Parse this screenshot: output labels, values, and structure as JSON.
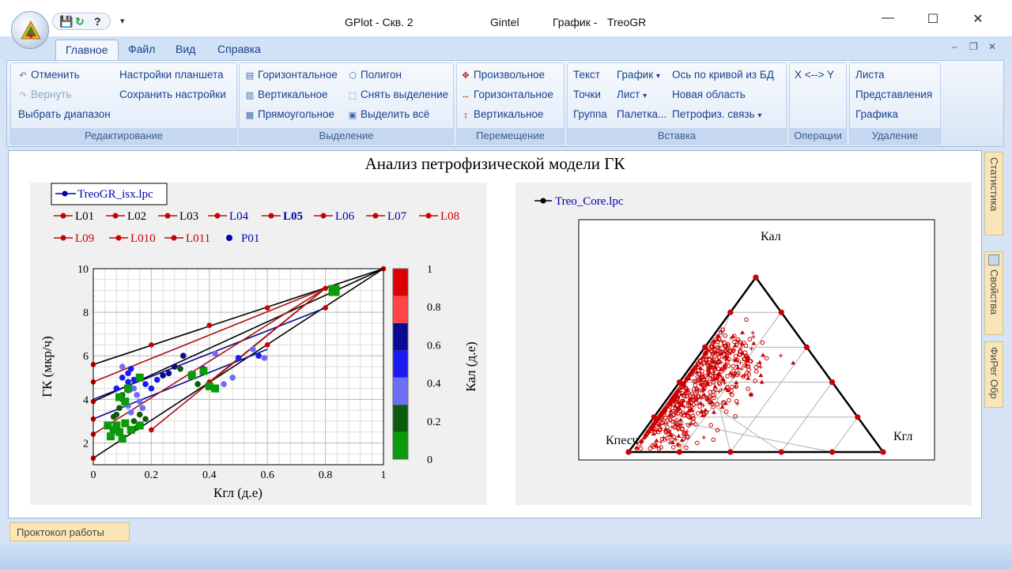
{
  "titlebar": {
    "app_title": "GPlot - Скв. 2",
    "company": "Gintel",
    "doc_label": "График -",
    "doc_name": "TreoGR",
    "minimize": "—",
    "maximize": "☐",
    "close": "✕"
  },
  "quick_access": {
    "save": "💾",
    "refresh": "↻",
    "help": "?",
    "dropdown": "▾"
  },
  "tabs": [
    {
      "label": "Главное",
      "active": true
    },
    {
      "label": "Файл"
    },
    {
      "label": "Вид"
    },
    {
      "label": "Справка"
    }
  ],
  "mdi_controls": {
    "minimize": "–",
    "restore": "❐",
    "close": "✕"
  },
  "ribbon": {
    "editing": {
      "title": "Редактирование",
      "undo": "Отменить",
      "redo": "Вернуть",
      "select_range": "Выбрать диапазон",
      "tablet_settings": "Настройки планшета",
      "save_settings": "Сохранить настройки"
    },
    "selection": {
      "title": "Выделение",
      "horizontal": "Горизонтальное",
      "vertical": "Вертикальное",
      "rectangular": "Прямоугольное",
      "polygon": "Полигон",
      "deselect": "Снять выделение",
      "select_all": "Выделить всё"
    },
    "moving": {
      "title": "Перемещение",
      "arbitrary": "Произвольное",
      "horizontal": "Горизонтальное",
      "vertical": "Вертикальное"
    },
    "insert": {
      "title": "Вставка",
      "text": "Текст",
      "points": "Точки",
      "group": "Группа",
      "chart": "График",
      "sheet": "Лист",
      "palette": "Палетка...",
      "axis_from_db": "Ось по кривой из БД",
      "new_area": "Новая область",
      "petro_link": "Петрофиз. связь",
      "dd": "▾"
    },
    "operations": {
      "title": "Операции",
      "swap_xy": "X <--> Y"
    },
    "deletion": {
      "title": "Удаление",
      "sheets": "Листа",
      "views": "Представления",
      "charts": "Графика"
    }
  },
  "chart_data": [
    {
      "type": "scatter",
      "title": "Анализ петрофизической модели ГК",
      "xlabel": "Кгл (д.е)",
      "ylabel": "ГК (мкр/ч)",
      "xlim": [
        0,
        1
      ],
      "ylim": [
        1,
        10
      ],
      "grid": true,
      "x_ticks": [
        "0",
        "0.2",
        "0.4",
        "0.6",
        "0.8",
        "1"
      ],
      "y_ticks": [
        "2",
        "4",
        "6",
        "8",
        "10"
      ],
      "legend_file": "TreoGR_isx.lpc",
      "legend": [
        {
          "name": "L01",
          "color": "#000000"
        },
        {
          "name": "L02",
          "color": "#000000"
        },
        {
          "name": "L03",
          "color": "#000000"
        },
        {
          "name": "L04",
          "color": "#0000aa"
        },
        {
          "name": "L05",
          "color": "#0000aa",
          "bold": true
        },
        {
          "name": "L06",
          "color": "#0000aa"
        },
        {
          "name": "L07",
          "color": "#0000aa"
        },
        {
          "name": "L08",
          "color": "#cc0000"
        },
        {
          "name": "L09",
          "color": "#cc0000"
        },
        {
          "name": "L010",
          "color": "#cc0000"
        },
        {
          "name": "L011",
          "color": "#cc0000"
        },
        {
          "name": "P01",
          "color": "#0000aa",
          "marker_only": true
        }
      ],
      "colorbar": {
        "label": "Кал (д.е)",
        "ticks": [
          "0",
          "0.2",
          "0.4",
          "0.6",
          "0.8",
          "1"
        ],
        "colors": [
          "#0a9a0a",
          "#0b5c0b",
          "#6e6ef5",
          "#1a1af0",
          "#0a0a90",
          "#ff4545",
          "#dd0000"
        ]
      },
      "lines": [
        {
          "color": "#000000",
          "points": [
            [
              0,
              5.6
            ],
            [
              1,
              10
            ]
          ]
        },
        {
          "color": "#000000",
          "points": [
            [
              0,
              3.9
            ],
            [
              1,
              10
            ]
          ]
        },
        {
          "color": "#000000",
          "points": [
            [
              0,
              1.3
            ],
            [
              1,
              10
            ]
          ]
        },
        {
          "color": "#0a0a90",
          "points": [
            [
              0,
              4.0
            ],
            [
              0.8,
              8.2
            ]
          ]
        },
        {
          "color": "#0a0a90",
          "points": [
            [
              0,
              3.1
            ],
            [
              0.6,
              6.3
            ]
          ]
        },
        {
          "color": "#aa1111",
          "points": [
            [
              0,
              4.8
            ],
            [
              0.8,
              9.1
            ]
          ]
        },
        {
          "color": "#aa1111",
          "points": [
            [
              0,
              2.4
            ],
            [
              0.8,
              9.1
            ]
          ]
        },
        {
          "color": "#aa1111",
          "points": [
            [
              0.2,
              2.6
            ],
            [
              0.8,
              9.1
            ]
          ]
        },
        {
          "color": "#aa1111",
          "points": [
            [
              0.4,
              4.8
            ],
            [
              0.8,
              9.1
            ]
          ]
        }
      ],
      "anchor_points": [
        [
          0,
          5.6
        ],
        [
          0,
          4.8
        ],
        [
          0,
          3.9
        ],
        [
          0,
          3.1
        ],
        [
          0,
          2.4
        ],
        [
          0,
          1.3
        ],
        [
          0.2,
          6.5
        ],
        [
          0.2,
          2.6
        ],
        [
          0.4,
          7.4
        ],
        [
          0.4,
          4.8
        ],
        [
          0.6,
          8.2
        ],
        [
          0.6,
          6.5
        ],
        [
          0.8,
          9.1
        ],
        [
          0.8,
          8.2
        ],
        [
          1,
          10
        ]
      ],
      "points": [
        [
          0.06,
          2.3,
          0.05
        ],
        [
          0.07,
          2.6,
          0.05
        ],
        [
          0.08,
          2.8,
          0.1
        ],
        [
          0.09,
          2.5,
          0.05
        ],
        [
          0.1,
          2.2,
          0.08
        ],
        [
          0.11,
          2.9,
          0.12
        ],
        [
          0.08,
          3.3,
          0.18
        ],
        [
          0.09,
          3.6,
          0.22
        ],
        [
          0.1,
          4.0,
          0.25
        ],
        [
          0.12,
          3.7,
          0.3
        ],
        [
          0.13,
          3.4,
          0.3
        ],
        [
          0.14,
          3.0,
          0.25
        ],
        [
          0.15,
          2.7,
          0.26
        ],
        [
          0.1,
          4.2,
          0.28
        ],
        [
          0.12,
          4.4,
          0.35
        ],
        [
          0.14,
          4.5,
          0.36
        ],
        [
          0.15,
          4.2,
          0.4
        ],
        [
          0.16,
          3.9,
          0.38
        ],
        [
          0.17,
          3.6,
          0.42
        ],
        [
          0.12,
          4.8,
          0.45
        ],
        [
          0.14,
          4.9,
          0.5
        ],
        [
          0.16,
          5.0,
          0.48
        ],
        [
          0.18,
          4.7,
          0.5
        ],
        [
          0.2,
          4.5,
          0.55
        ],
        [
          0.22,
          4.9,
          0.55
        ],
        [
          0.24,
          5.1,
          0.6
        ],
        [
          0.26,
          5.2,
          0.6
        ],
        [
          0.28,
          5.5,
          0.6
        ],
        [
          0.31,
          6.0,
          0.62
        ],
        [
          0.34,
          5.2,
          0.4
        ],
        [
          0.38,
          5.4,
          0.45
        ],
        [
          0.42,
          6.1,
          0.42
        ],
        [
          0.45,
          4.7,
          0.4
        ],
        [
          0.48,
          5.0,
          0.42
        ],
        [
          0.5,
          5.9,
          0.45
        ],
        [
          0.55,
          6.3,
          0.42
        ],
        [
          0.57,
          6.0,
          0.44
        ],
        [
          0.59,
          5.9,
          0.4
        ],
        [
          0.1,
          5.5,
          0.42
        ],
        [
          0.12,
          5.2,
          0.48
        ],
        [
          0.07,
          3.2,
          0.15
        ],
        [
          0.05,
          2.8,
          0.1
        ],
        [
          0.16,
          3.3,
          0.2
        ],
        [
          0.18,
          3.1,
          0.25
        ],
        [
          0.36,
          4.7,
          0.18
        ],
        [
          0.4,
          4.6,
          0.1
        ],
        [
          0.42,
          4.5,
          0.12
        ],
        [
          0.3,
          5.4,
          0.15
        ],
        [
          0.34,
          5.1,
          0.12
        ],
        [
          0.38,
          5.3,
          0.1
        ],
        [
          0.09,
          4.1,
          0.1
        ],
        [
          0.11,
          3.9,
          0.12
        ],
        [
          0.13,
          2.6,
          0.1
        ],
        [
          0.16,
          2.8,
          0.1
        ],
        [
          0.12,
          4.5,
          0.12
        ],
        [
          0.16,
          5.0,
          0.1
        ],
        [
          0.08,
          4.5,
          0.5
        ],
        [
          0.1,
          5.0,
          0.52
        ],
        [
          0.13,
          5.4,
          0.5
        ]
      ],
      "highlight_point": [
        0.83,
        9.0,
        0.05
      ]
    },
    {
      "type": "ternary",
      "legend_file": "Treo_Core.lpc",
      "vertices": {
        "top": "Кал",
        "left": "Кпесч",
        "right": "Кгл"
      },
      "grid_divisions": 5,
      "marker_color": "#cc0000",
      "point_count": 700
    }
  ],
  "bottom_panel": {
    "label": "Проктокол работы"
  },
  "side_tabs": [
    "Статистика",
    "Свойства",
    "ФиРег Обр"
  ]
}
